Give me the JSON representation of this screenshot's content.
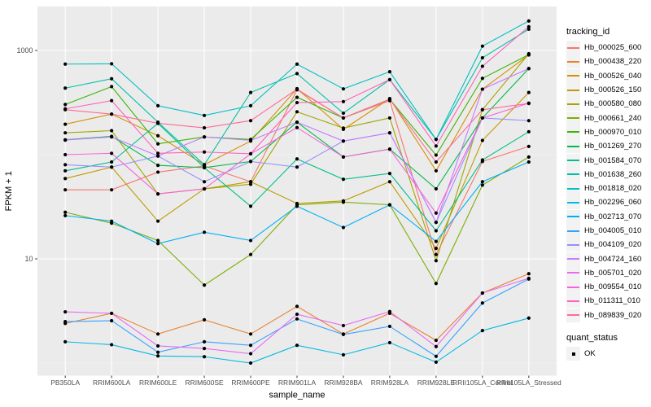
{
  "figure": {
    "panel_bg": "#EBEBEB",
    "grid_color": "#FFFFFF",
    "tick_color": "#333333",
    "tick_label_color": "#4D4D4D",
    "axis_title_color": "#000000",
    "legend_key_bg": "#F2F2F2",
    "point_color": "#000000"
  },
  "chart_data": {
    "type": "line",
    "title": "",
    "xlabel": "sample_name",
    "ylabel": "FPKM + 1",
    "y_scale": "log10",
    "y_tick_labels": [
      "10",
      "1000"
    ],
    "y_major_breaks": [
      10,
      1000
    ],
    "y_minor_breaks": [
      1,
      100
    ],
    "ylim": [
      0.76,
      2600
    ],
    "legend_position": "right",
    "grid": true,
    "categories": [
      "PB350LA",
      "RRIM600LA",
      "RRIM600LE",
      "RRIM600SE",
      "RRIM600PE",
      "RRIM901LA",
      "RRIM928BA",
      "RRIM928LA",
      "RRIM928LE",
      "RRII105LA_Control",
      "RRII105LA_Stressed"
    ],
    "series": [
      {
        "name": "Hb_000025_600",
        "color": "#F8766D",
        "values": [
          46,
          46,
          68,
          78,
          55,
          420,
          225,
          330,
          11,
          86,
          120
        ]
      },
      {
        "name": "Hb_000438_220",
        "color": "#EA8331",
        "values": [
          2.4,
          3.0,
          1.9,
          2.6,
          1.9,
          3.5,
          1.9,
          3.0,
          1.65,
          4.7,
          7.2
        ]
      },
      {
        "name": "Hb_000526_040",
        "color": "#D89000",
        "values": [
          196,
          245,
          152,
          80,
          135,
          430,
          175,
          345,
          70,
          425,
          905
        ]
      },
      {
        "name": "Hb_000526_150",
        "color": "#C09B00",
        "values": [
          59,
          76,
          23,
          47,
          55,
          34,
          36,
          55,
          12.6,
          137,
          395
        ]
      },
      {
        "name": "Hb_000580_080",
        "color": "#A3A500",
        "values": [
          162,
          170,
          42,
          47,
          52,
          258,
          180,
          225,
          9.6,
          270,
          930
        ]
      },
      {
        "name": "Hb_000661_240",
        "color": "#7CAE00",
        "values": [
          28,
          22,
          15,
          5.6,
          11,
          33,
          35,
          33,
          5.8,
          51,
          95
        ]
      },
      {
        "name": "Hb_000970_010",
        "color": "#39B600",
        "values": [
          303,
          450,
          127,
          148,
          140,
          355,
          225,
          340,
          99,
          540,
          910
        ]
      },
      {
        "name": "Hb_001269_270",
        "color": "#00BB4E",
        "values": [
          139,
          150,
          79,
          75,
          86,
          205,
          95,
          113,
          47,
          225,
          670
        ]
      },
      {
        "name": "Hb_001584_070",
        "color": "#00C08B",
        "values": [
          70,
          85,
          200,
          75,
          32,
          91,
          58,
          66,
          18.6,
          89,
          166
        ]
      },
      {
        "name": "Hb_001638_260",
        "color": "#00C1A7",
        "values": [
          435,
          535,
          205,
          80,
          395,
          600,
          250,
          525,
          140,
          850,
          1600
        ]
      },
      {
        "name": "Hb_001818_020",
        "color": "#00BFC4",
        "values": [
          740,
          745,
          295,
          238,
          295,
          740,
          428,
          625,
          140,
          1100,
          1920
        ]
      },
      {
        "name": "Hb_002296_060",
        "color": "#00BAE0",
        "values": [
          1.6,
          1.5,
          1.17,
          1.15,
          1.0,
          1.48,
          1.2,
          1.57,
          1.02,
          2.05,
          2.7
        ]
      },
      {
        "name": "Hb_002713_070",
        "color": "#00B0F6",
        "values": [
          26,
          23,
          14,
          18,
          15,
          32,
          20,
          33,
          14.7,
          55,
          85
        ]
      },
      {
        "name": "Hb_004005_010",
        "color": "#35A2FF",
        "values": [
          2.5,
          2.55,
          1.27,
          1.6,
          1.48,
          2.65,
          1.88,
          2.25,
          1.16,
          3.77,
          6.4
        ]
      },
      {
        "name": "Hb_004109_020",
        "color": "#9590FF",
        "values": [
          80,
          76,
          97,
          55,
          86,
          76,
          135,
          162,
          22.4,
          225,
          212
        ]
      },
      {
        "name": "Hb_004724_160",
        "color": "#C77CFF",
        "values": [
          138,
          148,
          97,
          148,
          137,
          205,
          135,
          162,
          22.4,
          425,
          670
        ]
      },
      {
        "name": "Hb_005701_020",
        "color": "#E76BF3",
        "values": [
          3.1,
          3.0,
          1.46,
          1.38,
          1.23,
          2.94,
          2.29,
          3.12,
          1.44,
          4.7,
          6.5
        ]
      },
      {
        "name": "Hb_009554_010",
        "color": "#FA62DB",
        "values": [
          100,
          103,
          42,
          47,
          102,
          182,
          95,
          113,
          27.5,
          225,
          312
        ]
      },
      {
        "name": "Hb_011311_010",
        "color": "#FF62BC",
        "values": [
          275,
          330,
          103,
          106,
          102,
          316,
          323,
          525,
          121,
          705,
          1690
        ]
      },
      {
        "name": "Hb_089839_020",
        "color": "#FF6A98",
        "values": [
          270,
          245,
          200,
          181,
          212,
          425,
          225,
          340,
          85,
          270,
          310
        ]
      }
    ],
    "legend": {
      "tracking_title": "tracking_id",
      "quant_title": "quant_status",
      "quant_items": [
        {
          "label": "OK"
        }
      ]
    }
  }
}
